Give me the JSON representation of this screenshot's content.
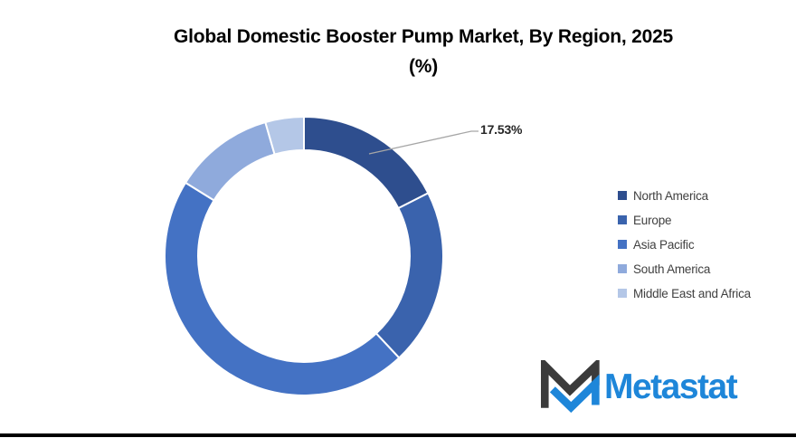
{
  "title": {
    "line1": "Global Domestic Booster Pump Market, By Region, 2025",
    "line2": "(%)"
  },
  "chart_data": {
    "type": "pie",
    "subtype": "donut",
    "title": "Global Domestic Booster Pump Market, By Region, 2025 (%)",
    "labels": [
      "North America",
      "Europe",
      "Asia Pacific",
      "South America",
      "Middle East and Africa"
    ],
    "values": [
      17.53,
      20.5,
      45.8,
      11.7,
      4.47
    ],
    "colors": [
      "#2e4e8e",
      "#3a63ad",
      "#4472c4",
      "#8faadc",
      "#b4c7e7"
    ],
    "hole_ratio": 0.76,
    "start_angle_deg": 0,
    "direction": "clockwise",
    "legend_position": "right",
    "data_label": {
      "text": "17.53%",
      "slice": "North America"
    }
  },
  "colors": {
    "leader_line": "#a6a6a6",
    "data_label_text": "#262626",
    "legend_text": "#404040",
    "logo_blue": "#1e86d9",
    "logo_dark": "#3b3b3b",
    "footer_bar": "#000000",
    "background": "#ffffff"
  },
  "logo": {
    "text": "Metastat"
  }
}
